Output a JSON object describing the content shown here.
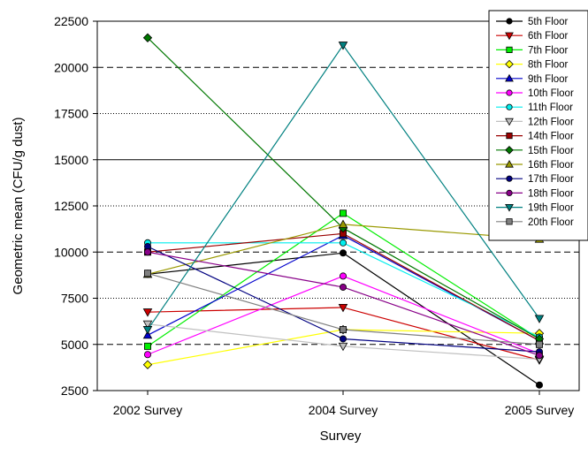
{
  "chart_data": {
    "type": "line",
    "title": "",
    "xlabel": "Survey",
    "ylabel": "Geometric mean (CFU/g dust)",
    "categories": [
      "2002 Survey",
      "2004 Survey",
      "2005 Survey"
    ],
    "ylim": [
      2500,
      22500
    ],
    "yticks": [
      2500,
      5000,
      7500,
      10000,
      12500,
      15000,
      17500,
      20000,
      22500
    ],
    "gridlines": {
      "dashed": [
        5000,
        10000,
        20000
      ],
      "dotted": [
        7500,
        12500,
        17500
      ],
      "solid": [
        15000
      ]
    },
    "legend_position": "top-right",
    "series": [
      {
        "name": "5th Floor",
        "values": [
          8800,
          9950,
          2800
        ],
        "color": "#000000",
        "marker": "circle"
      },
      {
        "name": "6th Floor",
        "values": [
          6750,
          7000,
          4150
        ],
        "color": "#cc0000",
        "marker": "triangle-down"
      },
      {
        "name": "7th Floor",
        "values": [
          4900,
          12100,
          5300
        ],
        "color": "#00ee00",
        "marker": "square"
      },
      {
        "name": "8th Floor",
        "values": [
          3900,
          5800,
          5600
        ],
        "color": "#ffff00",
        "marker": "diamond"
      },
      {
        "name": "9th Floor",
        "values": [
          5500,
          10900,
          5200
        ],
        "color": "#0000cc",
        "marker": "triangle-up"
      },
      {
        "name": "10th Floor",
        "values": [
          4450,
          8700,
          4500
        ],
        "color": "#ff00ff",
        "marker": "circle"
      },
      {
        "name": "11th Floor",
        "values": [
          10500,
          10500,
          5400
        ],
        "color": "#00eeee",
        "marker": "circle"
      },
      {
        "name": "12th Floor",
        "values": [
          6100,
          4900,
          4200
        ],
        "color": "#c0c0c0",
        "marker": "triangle-down"
      },
      {
        "name": "14th Floor",
        "values": [
          10000,
          11000,
          5200
        ],
        "color": "#990000",
        "marker": "square"
      },
      {
        "name": "15th Floor",
        "values": [
          21600,
          11300,
          5300
        ],
        "color": "#007700",
        "marker": "diamond"
      },
      {
        "name": "16th Floor",
        "values": [
          8800,
          11500,
          10700
        ],
        "color": "#999900",
        "marker": "triangle-up"
      },
      {
        "name": "17th Floor",
        "values": [
          10300,
          5300,
          4600
        ],
        "color": "#000080",
        "marker": "circle"
      },
      {
        "name": "18th Floor",
        "values": [
          10000,
          8100,
          4400
        ],
        "color": "#880088",
        "marker": "circle"
      },
      {
        "name": "19th Floor",
        "values": [
          5800,
          21200,
          6400
        ],
        "color": "#008080",
        "marker": "triangle-down"
      },
      {
        "name": "20th Floor",
        "values": [
          8850,
          5800,
          5000
        ],
        "color": "#808080",
        "marker": "square"
      }
    ]
  }
}
